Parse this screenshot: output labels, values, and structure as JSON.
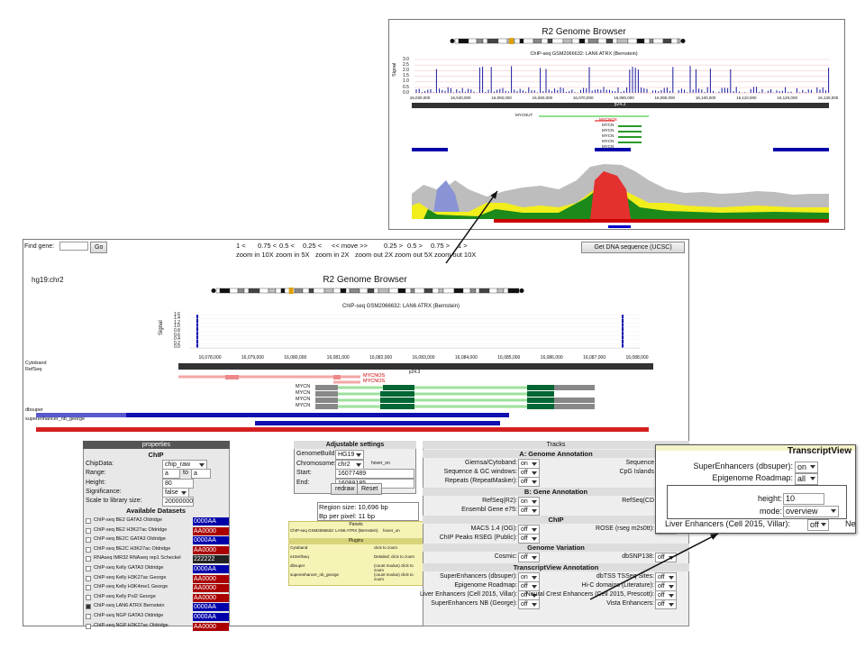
{
  "inset_top": {
    "title": "R2 Genome Browser",
    "track_title": "ChIP-seq GSM2066632: LAN6 ATRX (Bernstein)",
    "axis_label": "Signal",
    "yticks": [
      "3.0",
      "2.5",
      "2.0",
      "1.5",
      "1.0",
      "0.5",
      "0.0"
    ],
    "xticks": [
      "16,030,000",
      "16,040,000",
      "16,050,000",
      "16,060,000",
      "16,070,000",
      "16,080,000",
      "16,090,000",
      "16,100,000",
      "16,110,000",
      "16,120,000",
      "16,130,000"
    ],
    "band": "p24.3",
    "genes": [
      "MYCNUT",
      "MYCNOS",
      "MYCN",
      "MYCN",
      "MYCN",
      "MYCN",
      "MYCN"
    ]
  },
  "toolbar": {
    "find_label": "Find gene:",
    "go": "Go",
    "nav": [
      "1 <",
      "0.75 <",
      "0.5 <",
      "0.25 <",
      "<< move >>",
      "0.25 >",
      "0.5 >",
      "0.75 >",
      "1 >"
    ],
    "zoom": [
      "zoom in 10X",
      "zoom in 5X",
      "zoom in 2X",
      "zoom out 2X",
      "zoom out 5X",
      "zoom out 10X"
    ],
    "dna_button": "Get DNA sequence (UCSC)"
  },
  "browser": {
    "location": "hg19:chr2",
    "title": "R2 Genome Browser",
    "track_title": "ChIP-seq GSM2066632: LAN6 ATRX (Bernstein)",
    "axis_label": "Signal",
    "yticks": [
      "1.6",
      "1.4",
      "1.2",
      "1.0",
      "0.8",
      "0.6",
      "0.4",
      "0.2",
      "0.0"
    ],
    "xticks": [
      "16,078,000",
      "16,079,000",
      "16,080,000",
      "16,081,000",
      "16,082,000",
      "16,083,000",
      "16,084,000",
      "16,085,000",
      "16,086,000",
      "16,087,000",
      "16,088,000"
    ],
    "band": "p24.3",
    "track_labels": [
      "Cytoband",
      "RefSeq",
      "dbsuper",
      "superenhancer_nb_george"
    ],
    "genes": [
      "MYCNOS",
      "MYCNOS",
      "MYCN",
      "MYCN",
      "MYCN",
      "MYCN"
    ]
  },
  "properties": {
    "header": "properties",
    "section": "ChIP",
    "rows": [
      {
        "label": "ChipData:",
        "value": "chip_raw"
      },
      {
        "label": "Range:",
        "value": "a",
        "joiner": "to",
        "value2": "a"
      },
      {
        "label": "Height:",
        "value": "80"
      },
      {
        "label": "Significance:",
        "value": "false"
      },
      {
        "label": "Scale to library size:",
        "value": "20000000"
      }
    ],
    "datasets_title": "Available Datasets",
    "datasets": [
      {
        "name": "ChIP-seq BE2 GATA3 Oldridge",
        "color": "0000AA"
      },
      {
        "name": "ChIP-seq BE2 H3K27ac Oldridge",
        "color": "AA0000"
      },
      {
        "name": "ChIP-seq BE2C GATA3 Oldridge",
        "color": "0000AA"
      },
      {
        "name": "ChIP-seq BE2C H3K27ac Oldridge",
        "color": "AA0000"
      },
      {
        "name": "RNAseq IMR32 RNAseq rep1 Scheckel",
        "color": "222222"
      },
      {
        "name": "ChIP-seq Kelly GATA3 Oldridge",
        "color": "0000AA"
      },
      {
        "name": "ChIP-seq Kelly H3K27ac George",
        "color": "AA0000"
      },
      {
        "name": "ChIP-seq Kelly H3K4me1 George",
        "color": "AA0000"
      },
      {
        "name": "ChIP-seq Kelly Pol2 George",
        "color": "AA0000"
      },
      {
        "name": "ChIP-seq LAN6 ATRX Bernstein",
        "color": "0000AA",
        "checked": true
      },
      {
        "name": "ChIP-seq NGP GATA3 Oldridge",
        "color": "0000AA"
      },
      {
        "name": "ChIP-seq NGP H3K27ac Oldridge",
        "color": "AA0000"
      }
    ]
  },
  "settings": {
    "header": "Adjustable settings",
    "rows": [
      {
        "label": "GenomeBuild:",
        "value": "HG19"
      },
      {
        "label": "Chromosome:",
        "value": "chr2",
        "extra": "hover_on"
      },
      {
        "label": "Start:",
        "value": "16077489"
      },
      {
        "label": "End:",
        "value": "16088185"
      }
    ],
    "buttons": [
      "redraw",
      "Reset"
    ],
    "region": [
      "Region size: 10,696 bp",
      "Bp per pixel: 11 bp"
    ]
  },
  "panels": {
    "title": "Panels",
    "entry": "ChIP-seq GSM2066632: LAN6 ATRX (Bernstein)",
    "entry_state": "hover_on",
    "plugins": "Plugins",
    "rows": [
      {
        "name": "Cytoband",
        "note": "click to zoom"
      },
      {
        "name": "e10refSeq",
        "note": "Detailed; click to zoom"
      },
      {
        "name": "dbsuper",
        "note": "(count modus) click to zoom"
      },
      {
        "name": "superenhancer_nb_george",
        "note": "(count modus) click to zoom"
      }
    ]
  },
  "tracks": {
    "header": "Tracks",
    "sections": [
      {
        "title": "A: Genome Annotation",
        "left": [
          {
            "label": "Giemsa/Cytoband:",
            "value": "on"
          },
          {
            "label": "Sequence & GC windows:",
            "value": "off"
          },
          {
            "label": "Repeats (RepeatMasker):",
            "value": "off"
          }
        ],
        "right": [
          {
            "label": "Sequence"
          },
          {
            "label": "CpG Islands"
          }
        ]
      },
      {
        "title": "B: Gene Annotation",
        "left": [
          {
            "label": "RefSeq(R2):",
            "value": "on"
          },
          {
            "label": "Ensembl Gene e75:",
            "value": "off"
          }
        ],
        "right": [
          {
            "label": "RefSeq(CD"
          }
        ]
      },
      {
        "title": "ChIP",
        "left": [
          {
            "label": "MACS 1.4 (OG):",
            "value": "off"
          },
          {
            "label": "ChIP Peaks RSEG (Public):",
            "value": "off"
          }
        ],
        "right": [
          {
            "label": "ROSE (rseg m2s0tt):",
            "value": "off"
          }
        ]
      },
      {
        "title": "Genome Variation",
        "left": [
          {
            "label": "Cosmic:",
            "value": "off"
          }
        ],
        "right": [
          {
            "label": "dbSNP138:",
            "value": "off"
          }
        ]
      },
      {
        "title": "TranscriptView Annotation",
        "left": [
          {
            "label": "SuperEnhancers (dbsuper):",
            "value": "on"
          },
          {
            "label": "Epigenome Roadmap:",
            "value": "off"
          },
          {
            "label": "Liver Enhancers (Cell 2015, Villar):",
            "value": "off"
          },
          {
            "label": "SuperEnhancers NB (George):",
            "value": "off"
          }
        ],
        "right": [
          {
            "label": "dbTSS TSSeq Sites:",
            "value": "off"
          },
          {
            "label": "Hi-C domains (Literature):",
            "value": "off"
          },
          {
            "label": "Neural Crest Enhancers (Cell 2015, Prescott):",
            "value": "off"
          },
          {
            "label": "Vista Enhancers:",
            "value": "off"
          }
        ]
      }
    ]
  },
  "zoom_box": {
    "title": "TranscriptView",
    "rows": [
      {
        "label": "SuperEnhancers (dbsuper):",
        "value": "on"
      },
      {
        "label": "Epigenome Roadmap:",
        "value": "all"
      }
    ],
    "height_label": "height:",
    "height_value": "10",
    "mode_label": "mode:",
    "mode_value": "overview",
    "cut_label": "Liver Enhancers (Cell 2015, Villar):",
    "cut_value": "off",
    "cut_next": "Ne"
  }
}
